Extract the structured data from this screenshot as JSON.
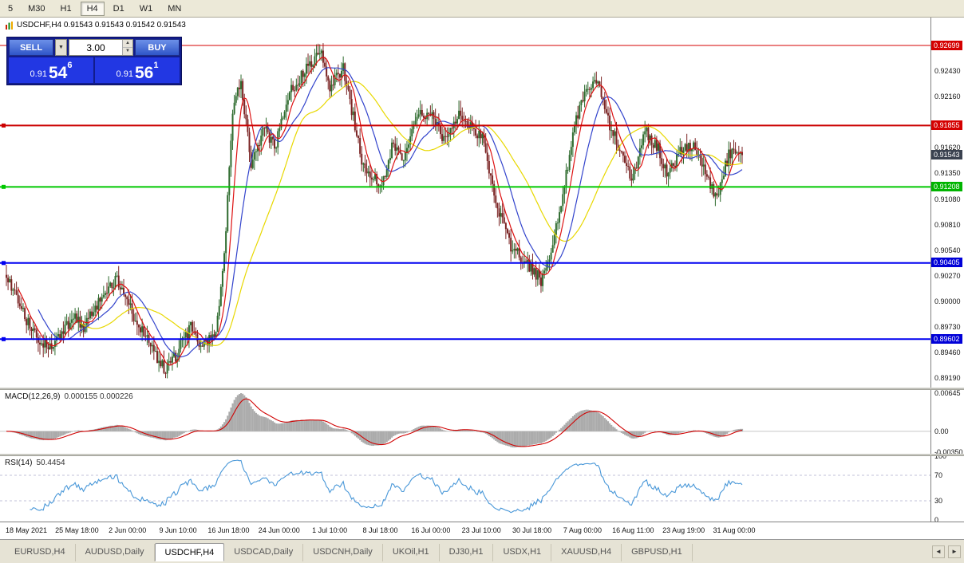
{
  "toolbar": {
    "timeframes": [
      {
        "label": "5",
        "active": false
      },
      {
        "label": "M30",
        "active": false
      },
      {
        "label": "H1",
        "active": false
      },
      {
        "label": "H4",
        "active": true
      },
      {
        "label": "D1",
        "active": false
      },
      {
        "label": "W1",
        "active": false
      },
      {
        "label": "MN",
        "active": false
      }
    ]
  },
  "chart_header": {
    "title": "USDCHF,H4 0.91543 0.91543 0.91542 0.91543"
  },
  "trade_panel": {
    "sell_label": "SELL",
    "buy_label": "BUY",
    "volume": "3.00",
    "dropdown_glyph": "▼",
    "spinner_up": "▲",
    "spinner_down": "▼",
    "sell_price": {
      "base": "0.91",
      "pips": "54",
      "sup": "6"
    },
    "buy_price": {
      "base": "0.91",
      "pips": "56",
      "sup": "1"
    }
  },
  "price_scale": {
    "min": 0.891,
    "max": 0.928,
    "ticks": [
      "0.92430",
      "0.92160",
      "0.91890",
      "0.91620",
      "0.91350",
      "0.91080",
      "0.90810",
      "0.90540",
      "0.90270",
      "0.90000",
      "0.89730",
      "0.89460",
      "0.89190"
    ],
    "tick_values": [
      0.9243,
      0.9216,
      0.9189,
      0.9162,
      0.9135,
      0.9108,
      0.9081,
      0.9054,
      0.9027,
      0.9,
      0.8973,
      0.8946,
      0.8919
    ],
    "labels": [
      {
        "text": "0.92699",
        "value": 0.92699,
        "bg": "#D40000"
      },
      {
        "text": "0.91855",
        "value": 0.91855,
        "bg": "#D40000"
      },
      {
        "text": "0.91543",
        "value": 0.91543,
        "bg": "#3A4250"
      },
      {
        "text": "0.91208",
        "value": 0.91208,
        "bg": "#00B400"
      },
      {
        "text": "0.90405",
        "value": 0.90405,
        "bg": "#0000D8"
      },
      {
        "text": "0.89602",
        "value": 0.89602,
        "bg": "#0000D8"
      }
    ]
  },
  "time_axis": [
    "18 May 2021",
    "25 May 18:00",
    "2 Jun 00:00",
    "9 Jun 10:00",
    "16 Jun 18:00",
    "24 Jun 00:00",
    "1 Jul 10:00",
    "8 Jul 18:00",
    "16 Jul 00:00",
    "23 Jul 10:00",
    "30 Jul 18:00",
    "7 Aug 00:00",
    "16 Aug 11:00",
    "23 Aug 19:00",
    "31 Aug 00:00"
  ],
  "macd_panel": {
    "label": "MACD(12,26,9)",
    "values": "0.000155 0.000226",
    "scale": [
      {
        "text": "0.00645",
        "value": 0.00645
      },
      {
        "text": "0.00",
        "value": 0
      },
      {
        "text": "-0.00350",
        "value": -0.0035
      }
    ]
  },
  "rsi_panel": {
    "label": "RSI(14)",
    "value": "50.4454",
    "scale": [
      {
        "text": "100",
        "value": 100
      },
      {
        "text": "70",
        "value": 70
      },
      {
        "text": "30",
        "value": 30
      },
      {
        "text": "0",
        "value": 0
      }
    ],
    "levels": [
      70,
      30
    ]
  },
  "tabs": {
    "items": [
      "EURUSD,H4",
      "AUDUSD,Daily",
      "USDCHF,H4",
      "USDCAD,Daily",
      "USDCNH,Daily",
      "UKOil,H1",
      "DJ30,H1",
      "USDX,H1",
      "XAUUSD,H4",
      "GBPUSD,H1"
    ],
    "active": "USDCHF,H4",
    "scroll_left": "◄",
    "scroll_right": "►"
  },
  "chart_data": {
    "type": "candlestick-ohlc",
    "symbol": "USDCHF",
    "timeframe": "H4",
    "last_price": 0.91543,
    "candle_count": 440,
    "ylim": [
      0.891,
      0.928
    ],
    "horizontal_lines": [
      {
        "value": 0.92699,
        "color": "#D40000",
        "width": 1
      },
      {
        "value": 0.91855,
        "color": "#CC0000",
        "width": 2
      },
      {
        "value": 0.91208,
        "color": "#00C800",
        "width": 2
      },
      {
        "value": 0.90405,
        "color": "#0000F0",
        "width": 2
      },
      {
        "value": 0.89602,
        "color": "#0000F0",
        "width": 2
      }
    ],
    "price_path": [
      [
        0,
        0.9028
      ],
      [
        0.02,
        0.8992
      ],
      [
        0.04,
        0.8962
      ],
      [
        0.06,
        0.895
      ],
      [
        0.075,
        0.8963
      ],
      [
        0.09,
        0.8986
      ],
      [
        0.105,
        0.897
      ],
      [
        0.12,
        0.8992
      ],
      [
        0.135,
        0.901
      ],
      [
        0.15,
        0.9022
      ],
      [
        0.165,
        0.8998
      ],
      [
        0.18,
        0.8975
      ],
      [
        0.2,
        0.8945
      ],
      [
        0.215,
        0.8928
      ],
      [
        0.23,
        0.8942
      ],
      [
        0.25,
        0.8973
      ],
      [
        0.265,
        0.8955
      ],
      [
        0.285,
        0.8962
      ],
      [
        0.297,
        0.906
      ],
      [
        0.308,
        0.92
      ],
      [
        0.318,
        0.9235
      ],
      [
        0.333,
        0.9143
      ],
      [
        0.35,
        0.9185
      ],
      [
        0.365,
        0.9163
      ],
      [
        0.385,
        0.922
      ],
      [
        0.4,
        0.9238
      ],
      [
        0.428,
        0.9263
      ],
      [
        0.44,
        0.9226
      ],
      [
        0.458,
        0.9247
      ],
      [
        0.47,
        0.92
      ],
      [
        0.483,
        0.915
      ],
      [
        0.497,
        0.9131
      ],
      [
        0.51,
        0.9122
      ],
      [
        0.525,
        0.9165
      ],
      [
        0.54,
        0.915
      ],
      [
        0.558,
        0.9196
      ],
      [
        0.578,
        0.92
      ],
      [
        0.595,
        0.917
      ],
      [
        0.613,
        0.9198
      ],
      [
        0.63,
        0.9185
      ],
      [
        0.648,
        0.9172
      ],
      [
        0.665,
        0.9105
      ],
      [
        0.685,
        0.9058
      ],
      [
        0.705,
        0.9042
      ],
      [
        0.728,
        0.9021
      ],
      [
        0.742,
        0.9056
      ],
      [
        0.758,
        0.912
      ],
      [
        0.772,
        0.9186
      ],
      [
        0.788,
        0.9226
      ],
      [
        0.802,
        0.9236
      ],
      [
        0.818,
        0.919
      ],
      [
        0.835,
        0.916
      ],
      [
        0.85,
        0.9126
      ],
      [
        0.868,
        0.918
      ],
      [
        0.885,
        0.9162
      ],
      [
        0.9,
        0.9133
      ],
      [
        0.918,
        0.9161
      ],
      [
        0.934,
        0.9165
      ],
      [
        0.95,
        0.9139
      ],
      [
        0.965,
        0.9106
      ],
      [
        0.982,
        0.9156
      ],
      [
        1,
        0.91543
      ]
    ],
    "colors": {
      "bull": "#2E6B2E",
      "bear": "#7B2424",
      "ma_fast": "#DD1111",
      "ma_mid": "#3344CC",
      "ma_slow": "#E8D800",
      "macd_histogram": "#ABABAB",
      "macd_signal": "#D00000",
      "rsi_line": "#4897D8"
    },
    "indicators": [
      "SMA fast (red)",
      "SMA mid (blue)",
      "SMA slow (yellow)",
      "MACD(12,26,9)",
      "RSI(14)"
    ]
  }
}
